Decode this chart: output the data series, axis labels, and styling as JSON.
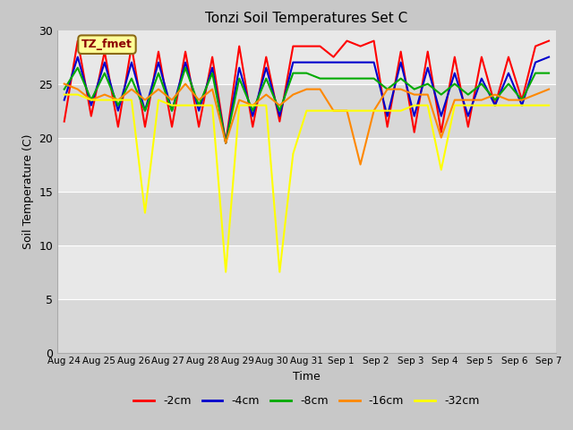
{
  "title": "Tonzi Soil Temperatures Set C",
  "xlabel": "Time",
  "ylabel": "Soil Temperature (C)",
  "ylim": [
    0,
    30
  ],
  "background_color": "#c8c8c8",
  "plot_bg_color": "#e0e0e0",
  "band_colors": [
    "#d8d8d8",
    "#e8e8e8"
  ],
  "legend_label": "TZ_fmet",
  "legend_bg": "#ffff99",
  "legend_border": "#8b6914",
  "series_labels": [
    "-2cm",
    "-4cm",
    "-8cm",
    "-16cm",
    "-32cm"
  ],
  "series_colors": [
    "#ff0000",
    "#0000cc",
    "#00aa00",
    "#ff8800",
    "#ffff00"
  ],
  "x_tick_labels": [
    "Aug 24",
    "Aug 25",
    "Aug 26",
    "Aug 27",
    "Aug 28",
    "Aug 29",
    "Aug 30",
    "Aug 31",
    "Sep 1",
    "Sep 2",
    "Sep 3",
    "Sep 4",
    "Sep 5",
    "Sep 6",
    "Sep 7"
  ],
  "data": {
    "-2cm": [
      21.5,
      29.0,
      22.0,
      28.0,
      21.0,
      28.5,
      21.0,
      28.0,
      21.0,
      28.0,
      21.0,
      27.5,
      19.5,
      28.5,
      21.0,
      27.5,
      21.5,
      28.5,
      28.5,
      28.5,
      27.5,
      29.0,
      28.5,
      29.0,
      21.0,
      28.0,
      20.5,
      28.0,
      20.5,
      27.5,
      21.0,
      27.5,
      23.0,
      27.5,
      23.5,
      28.5,
      29.0
    ],
    "-4cm": [
      23.5,
      27.5,
      23.0,
      27.0,
      22.5,
      27.0,
      22.5,
      27.0,
      22.5,
      27.0,
      22.5,
      26.5,
      19.5,
      26.5,
      22.0,
      26.5,
      22.0,
      27.0,
      27.0,
      27.0,
      27.0,
      27.0,
      27.0,
      27.0,
      22.0,
      27.0,
      22.0,
      26.5,
      22.0,
      26.0,
      22.0,
      25.5,
      23.0,
      26.0,
      23.0,
      27.0,
      27.5
    ],
    "-8cm": [
      24.5,
      26.5,
      23.5,
      26.0,
      23.0,
      25.5,
      22.5,
      26.0,
      22.5,
      26.5,
      23.0,
      26.0,
      19.5,
      25.5,
      22.5,
      25.5,
      22.5,
      26.0,
      26.0,
      25.5,
      25.5,
      25.5,
      25.5,
      25.5,
      24.5,
      25.5,
      24.5,
      25.0,
      24.0,
      25.0,
      24.0,
      25.0,
      23.5,
      25.0,
      23.5,
      26.0,
      26.0
    ],
    "-16cm": [
      25.0,
      24.5,
      23.5,
      24.0,
      23.5,
      24.5,
      23.5,
      24.5,
      23.5,
      25.0,
      23.5,
      24.5,
      19.5,
      23.5,
      23.0,
      24.0,
      23.0,
      24.0,
      24.5,
      24.5,
      22.5,
      22.5,
      17.5,
      22.5,
      24.5,
      24.5,
      24.0,
      24.0,
      20.0,
      23.5,
      23.5,
      23.5,
      24.0,
      23.5,
      23.5,
      24.0,
      24.5
    ],
    "-32cm": [
      24.0,
      24.0,
      23.5,
      23.5,
      23.5,
      23.5,
      13.0,
      23.5,
      23.0,
      23.0,
      23.0,
      23.0,
      7.5,
      23.0,
      23.0,
      23.0,
      7.5,
      18.5,
      22.5,
      22.5,
      22.5,
      22.5,
      22.5,
      22.5,
      22.5,
      22.5,
      23.0,
      23.0,
      17.0,
      23.0,
      23.0,
      23.0,
      23.0,
      23.0,
      23.0,
      23.0,
      23.0
    ]
  }
}
